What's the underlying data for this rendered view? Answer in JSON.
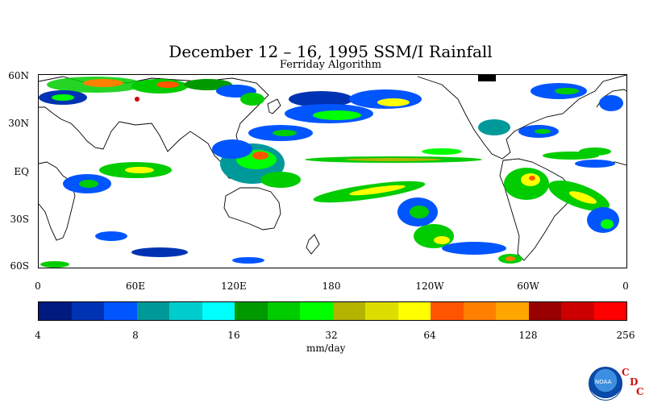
{
  "title": "December 12 – 16, 1995 SSM/I Rainfall",
  "subtitle": "Ferriday Algorithm",
  "lat_labels": [
    "60N",
    "30N",
    "EQ",
    "30S",
    "60S"
  ],
  "lon_labels": [
    "0",
    "60E",
    "120E",
    "180",
    "120W",
    "60W",
    "0"
  ],
  "colorbar": {
    "colors": [
      "#001a80",
      "#0033b3",
      "#0055ff",
      "#009999",
      "#00cccc",
      "#00ffff",
      "#009900",
      "#00cc00",
      "#00ff00",
      "#b3b300",
      "#dddd00",
      "#ffff00",
      "#ff5500",
      "#ff8000",
      "#ffa500",
      "#990000",
      "#cc0000",
      "#ff0000"
    ],
    "tick_labels": [
      "4",
      "8",
      "16",
      "32",
      "64",
      "128",
      "256"
    ],
    "unit": "mm/day"
  },
  "logo": {
    "name": "NOAA",
    "cdc": [
      "C",
      "D",
      "C"
    ]
  }
}
